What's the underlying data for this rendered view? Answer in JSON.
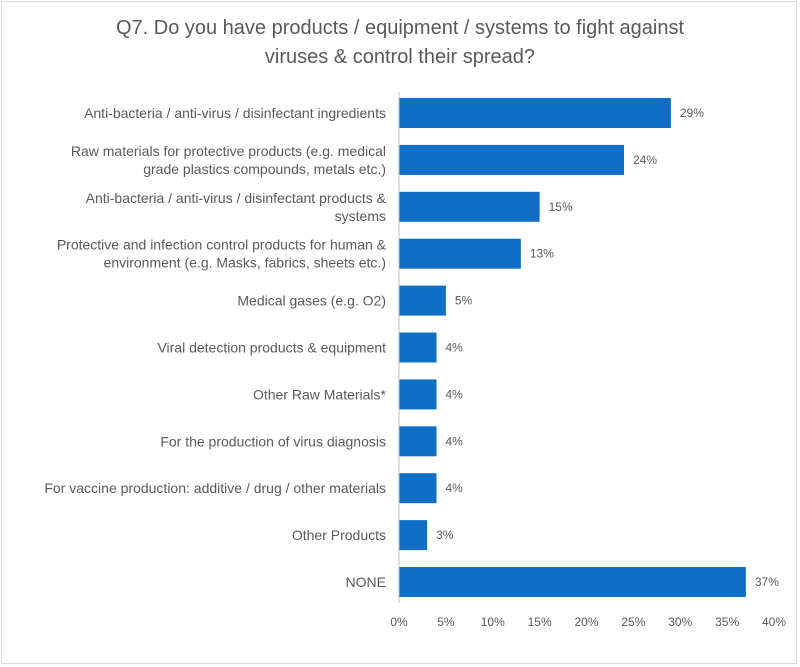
{
  "chart_data": {
    "type": "bar",
    "orientation": "horizontal",
    "title_lines": [
      "Q7. Do you have products / equipment / systems to fight against",
      "viruses & control their spread?"
    ],
    "categories": [
      [
        "Anti-bacteria / anti-virus / disinfectant ingredients"
      ],
      [
        "Raw materials for protective products (e.g. medical",
        "grade plastics compounds, metals etc.)"
      ],
      [
        "Anti-bacteria / anti-virus / disinfectant products &",
        "systems"
      ],
      [
        "Protective and infection control products for human &",
        "environment (e.g. Masks, fabrics, sheets etc.)"
      ],
      [
        "Medical gases (e.g. O2)"
      ],
      [
        "Viral detection products & equipment"
      ],
      [
        "Other Raw Materials*"
      ],
      [
        "For the production of virus diagnosis"
      ],
      [
        "For vaccine production: additive / drug / other materials"
      ],
      [
        "Other Products"
      ],
      [
        "NONE"
      ]
    ],
    "values": [
      29,
      24,
      15,
      13,
      5,
      4,
      4,
      4,
      4,
      3,
      37
    ],
    "data_labels": [
      "29%",
      "24%",
      "15%",
      "13%",
      "5%",
      "4%",
      "4%",
      "4%",
      "4%",
      "3%",
      "37%"
    ],
    "xlim": [
      0,
      40
    ],
    "xticks": [
      0,
      5,
      10,
      15,
      20,
      25,
      30,
      35,
      40
    ],
    "xtick_labels": [
      "0%",
      "5%",
      "10%",
      "15%",
      "20%",
      "25%",
      "30%",
      "35%",
      "40%"
    ],
    "bar_color": "#0f6fc6",
    "grid": false,
    "legend": "none"
  }
}
